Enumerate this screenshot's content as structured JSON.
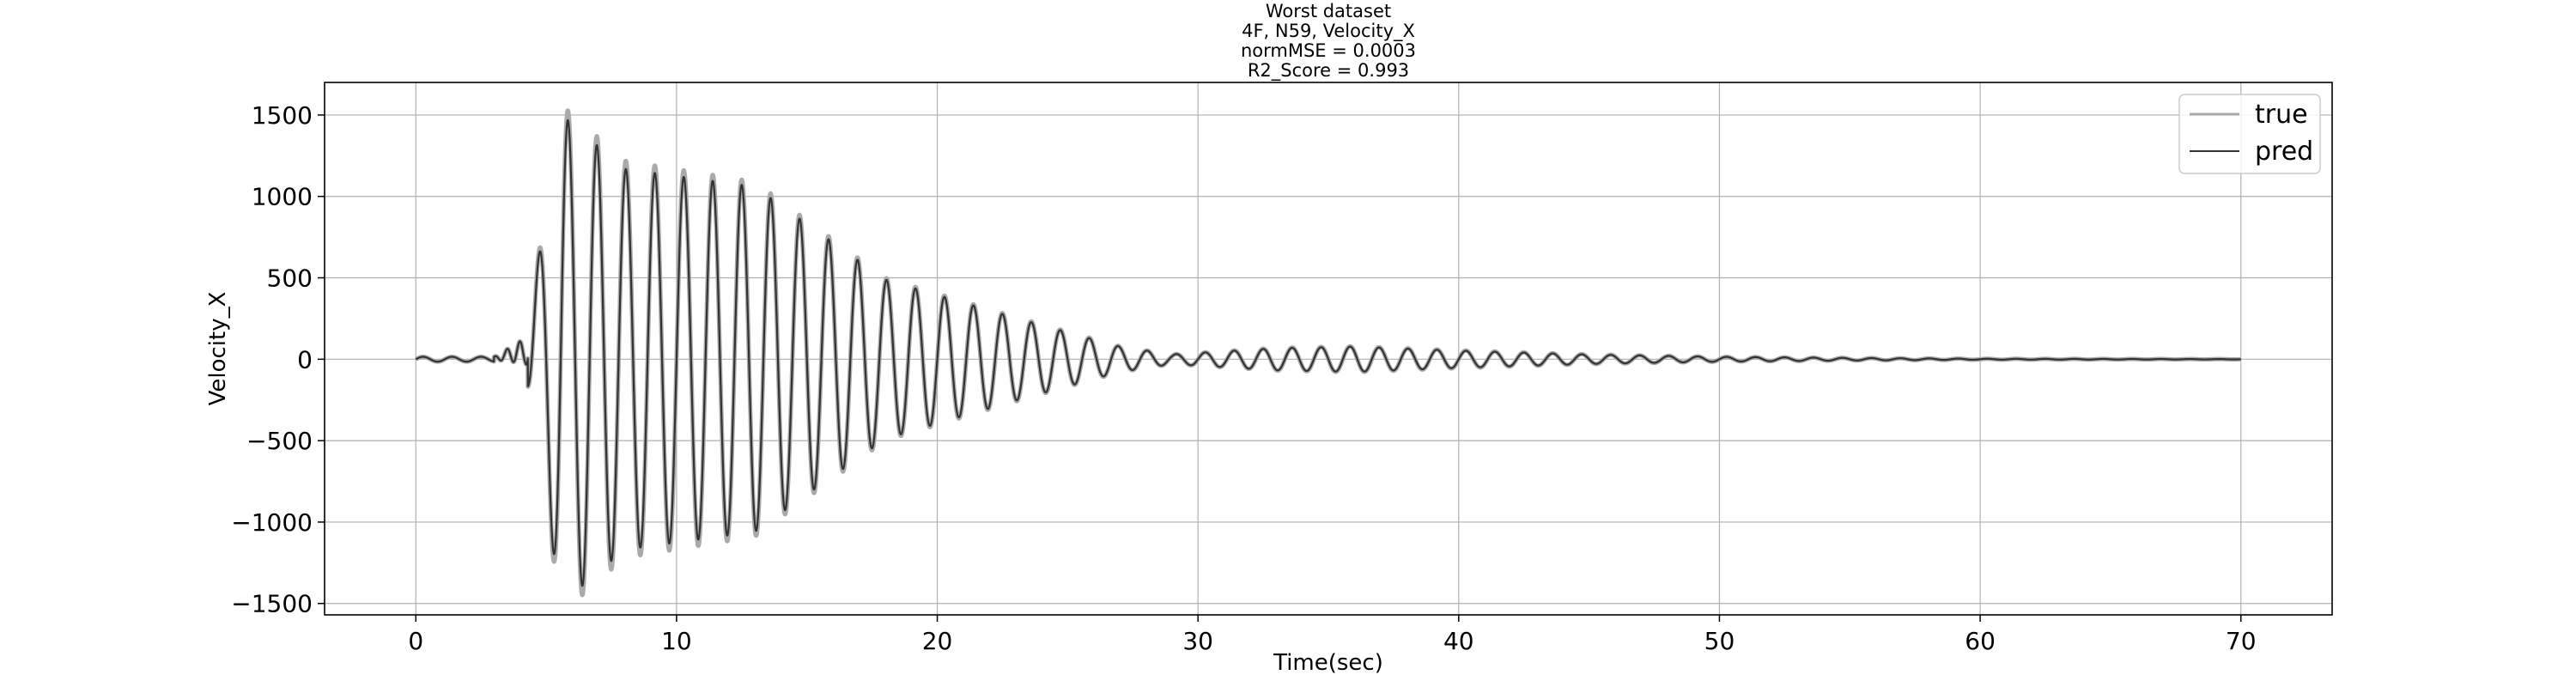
{
  "chart_data": {
    "type": "line",
    "title_lines": [
      "Worst dataset",
      "4F, N59, Velocity_X",
      "normMSE = 0.0003",
      "R2_Score = 0.993"
    ],
    "xlabel": "Time(sec)",
    "ylabel": "Velocity_X",
    "xlim": [
      -3.5,
      73.5
    ],
    "ylim": [
      -1570,
      1700
    ],
    "x_ticks": [
      0,
      10,
      20,
      30,
      40,
      50,
      60,
      70
    ],
    "x_tick_labels": [
      "0",
      "10",
      "20",
      "30",
      "40",
      "50",
      "60",
      "70"
    ],
    "y_ticks": [
      -1500,
      -1000,
      -500,
      0,
      500,
      1000,
      1500
    ],
    "y_tick_labels": [
      "−1500",
      "−1000",
      "−500",
      "0",
      "500",
      "1000",
      "1500"
    ],
    "grid": true,
    "legend": {
      "placement": "top-right",
      "entries": [
        "true",
        "pred"
      ]
    },
    "series": [
      {
        "name": "true",
        "color": "#aaaaaa",
        "x_range": [
          0,
          70
        ],
        "envelope": {
          "x": [
            0,
            3,
            4.2,
            5.6,
            8,
            13,
            18,
            23,
            27,
            29,
            33,
            36,
            40,
            45,
            50,
            55,
            60,
            70
          ],
          "y": [
            15,
            15,
            130,
            1560,
            1220,
            1090,
            500,
            260,
            80,
            30,
            70,
            80,
            55,
            30,
            15,
            8,
            3,
            1
          ]
        },
        "wave_frequency_hz": 0.9
      },
      {
        "name": "pred",
        "color": "#333333",
        "x_range": [
          0,
          70
        ],
        "envelope": {
          "x": [
            0,
            3,
            4.2,
            5.6,
            8,
            13,
            18,
            23,
            27,
            29,
            33,
            36,
            40,
            45,
            50,
            55,
            60,
            70
          ],
          "y": [
            15,
            15,
            130,
            1500,
            1170,
            1060,
            490,
            255,
            78,
            30,
            68,
            78,
            53,
            29,
            15,
            8,
            3,
            1
          ]
        },
        "wave_frequency_hz": 0.9
      }
    ]
  }
}
